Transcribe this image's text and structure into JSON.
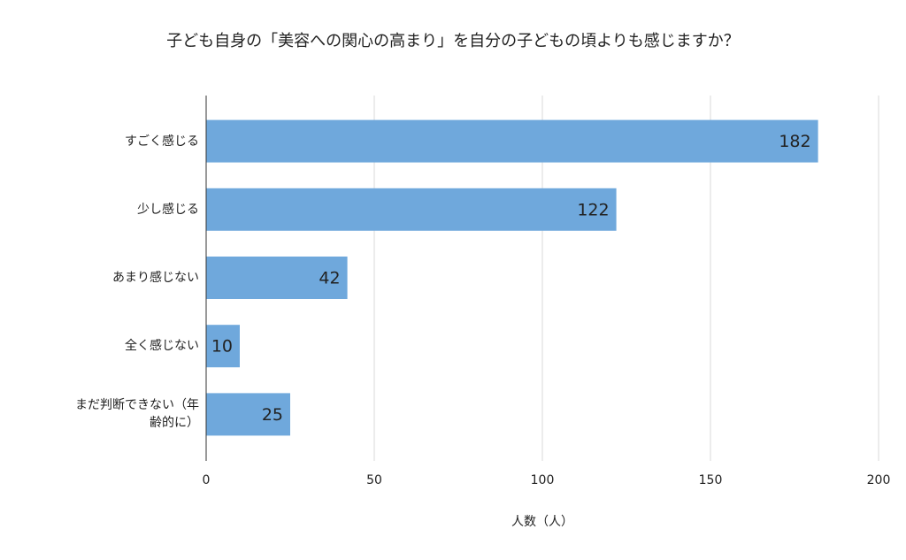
{
  "chart_data": {
    "type": "bar",
    "orientation": "horizontal",
    "title": "子ども自身の「美容への関心の高まり」を自分の子どもの頃よりも感じますか？",
    "x_label": "人数（人）",
    "categories": [
      "すごく感じる",
      "少し感じる",
      "あまり感じない",
      "全く感じない",
      "まだ判断できない（年齢的に）"
    ],
    "values": [
      182,
      122,
      42,
      10,
      25
    ],
    "color": "#6fa8dc",
    "xlim": [
      0,
      200
    ],
    "xticks": [
      0,
      50,
      100,
      150,
      200
    ],
    "grid": true
  }
}
